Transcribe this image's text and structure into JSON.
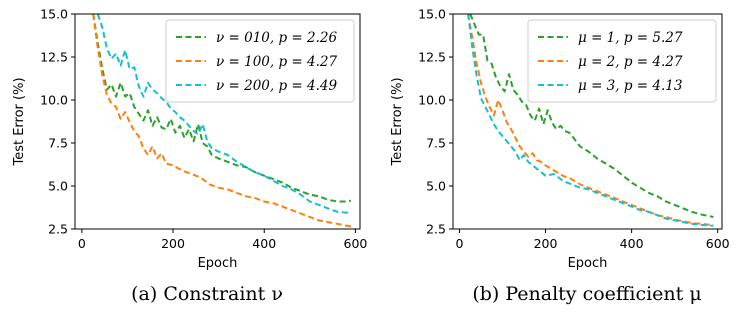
{
  "chart_data": [
    {
      "type": "line",
      "caption": "(a) Constraint ν",
      "xlabel": "Epoch",
      "ylabel": "Test Error (%)",
      "xlim": [
        -15,
        610
      ],
      "ylim": [
        2.5,
        15.0
      ],
      "xticks": [
        0,
        200,
        400,
        600
      ],
      "yticks": [
        "2.5",
        "5.0",
        "7.5",
        "10.0",
        "12.5",
        "15.0"
      ],
      "legend_position": "top-right",
      "series": [
        {
          "name": "ν = 010, p = 2.26",
          "color": "#2ca02c",
          "x": [
            25,
            35,
            45,
            55,
            65,
            75,
            85,
            95,
            105,
            115,
            125,
            135,
            145,
            155,
            165,
            175,
            185,
            195,
            205,
            215,
            225,
            235,
            245,
            255,
            265,
            275,
            285,
            300,
            320,
            340,
            360,
            380,
            400,
            420,
            440,
            460,
            480,
            500,
            520,
            540,
            560,
            580,
            590
          ],
          "y": [
            15.0,
            13.3,
            11.8,
            10.6,
            10.9,
            10.2,
            11.0,
            10.2,
            10.4,
            9.6,
            9.2,
            8.8,
            9.4,
            8.5,
            9.0,
            8.4,
            8.3,
            8.9,
            8.1,
            8.5,
            7.8,
            8.3,
            7.6,
            8.6,
            7.5,
            7.3,
            6.8,
            6.6,
            6.4,
            6.2,
            6.1,
            5.8,
            5.6,
            5.4,
            5.2,
            4.9,
            4.7,
            4.5,
            4.4,
            4.2,
            4.1,
            4.1,
            4.15
          ]
        },
        {
          "name": "ν = 100, p = 4.27",
          "color": "#ff7f0e",
          "x": [
            25,
            35,
            45,
            55,
            65,
            75,
            85,
            95,
            105,
            115,
            125,
            135,
            145,
            155,
            165,
            175,
            185,
            200,
            220,
            240,
            260,
            280,
            300,
            320,
            340,
            360,
            380,
            400,
            420,
            440,
            460,
            480,
            500,
            520,
            540,
            560,
            580,
            590
          ],
          "y": [
            15.0,
            13.0,
            11.4,
            10.3,
            9.8,
            9.6,
            8.9,
            9.3,
            8.7,
            8.2,
            7.9,
            7.2,
            6.8,
            7.3,
            6.6,
            6.9,
            6.3,
            6.2,
            5.9,
            5.7,
            5.5,
            5.1,
            4.9,
            4.8,
            4.6,
            4.4,
            4.3,
            4.1,
            4.0,
            3.8,
            3.6,
            3.4,
            3.2,
            3.0,
            2.9,
            2.8,
            2.7,
            2.65
          ]
        },
        {
          "name": "ν = 200, p = 4.49",
          "color": "#17becf",
          "x": [
            35,
            45,
            55,
            65,
            75,
            85,
            95,
            105,
            115,
            125,
            135,
            145,
            155,
            165,
            175,
            185,
            195,
            205,
            215,
            225,
            235,
            245,
            255,
            265,
            275,
            285,
            300,
            320,
            340,
            360,
            380,
            400,
            420,
            440,
            460,
            480,
            500,
            520,
            540,
            560,
            580,
            590
          ],
          "y": [
            15.0,
            14.2,
            13.0,
            12.4,
            12.7,
            12.0,
            12.9,
            11.8,
            11.9,
            10.8,
            10.2,
            11.0,
            10.6,
            10.4,
            10.1,
            9.9,
            9.5,
            9.3,
            9.0,
            8.8,
            8.5,
            8.2,
            8.0,
            8.6,
            7.6,
            7.2,
            7.0,
            6.8,
            6.4,
            6.1,
            5.8,
            5.6,
            5.3,
            5.0,
            4.8,
            4.5,
            4.1,
            3.9,
            3.7,
            3.5,
            3.45,
            3.5
          ]
        }
      ]
    },
    {
      "type": "line",
      "caption": "(b) Penalty coefficient μ",
      "xlabel": "Epoch",
      "ylabel": "Test Error (%)",
      "xlim": [
        -15,
        610
      ],
      "ylim": [
        2.5,
        15.0
      ],
      "xticks": [
        0,
        200,
        400,
        600
      ],
      "yticks": [
        "2.5",
        "5.0",
        "7.5",
        "10.0",
        "12.5",
        "15.0"
      ],
      "legend_position": "top-right",
      "series": [
        {
          "name": "μ = 1, p = 5.27",
          "color": "#2ca02c",
          "x": [
            25,
            35,
            45,
            55,
            65,
            75,
            85,
            95,
            105,
            115,
            125,
            135,
            145,
            155,
            165,
            175,
            185,
            195,
            205,
            215,
            225,
            235,
            245,
            255,
            265,
            280,
            300,
            320,
            340,
            360,
            380,
            400,
            420,
            440,
            460,
            480,
            500,
            520,
            540,
            560,
            580,
            590
          ],
          "y": [
            15.0,
            14.4,
            13.8,
            13.8,
            12.3,
            12.1,
            11.3,
            10.8,
            10.5,
            11.5,
            10.6,
            10.3,
            9.9,
            9.7,
            9.1,
            8.8,
            9.5,
            8.6,
            9.4,
            8.7,
            8.3,
            8.5,
            8.2,
            8.1,
            7.8,
            7.3,
            7.0,
            6.6,
            6.3,
            6.0,
            5.6,
            5.2,
            4.9,
            4.6,
            4.4,
            4.1,
            3.9,
            3.7,
            3.5,
            3.35,
            3.25,
            3.2
          ]
        },
        {
          "name": "μ = 2, p = 4.27",
          "color": "#ff7f0e",
          "x": [
            20,
            30,
            40,
            50,
            60,
            70,
            80,
            90,
            100,
            110,
            120,
            130,
            140,
            150,
            160,
            170,
            180,
            190,
            200,
            220,
            240,
            260,
            280,
            300,
            320,
            340,
            360,
            380,
            400,
            420,
            440,
            460,
            480,
            500,
            520,
            540,
            560,
            580,
            590
          ],
          "y": [
            15.0,
            13.6,
            12.1,
            11.0,
            10.2,
            9.6,
            9.1,
            10.0,
            9.4,
            8.7,
            8.3,
            7.8,
            7.3,
            7.0,
            6.7,
            6.9,
            6.5,
            6.4,
            6.2,
            5.9,
            5.6,
            5.4,
            5.1,
            4.9,
            4.7,
            4.5,
            4.3,
            4.1,
            3.9,
            3.7,
            3.5,
            3.3,
            3.2,
            3.05,
            2.95,
            2.85,
            2.8,
            2.75,
            2.75
          ]
        },
        {
          "name": "μ = 3, p = 4.13",
          "color": "#17becf",
          "x": [
            20,
            30,
            40,
            50,
            60,
            70,
            80,
            90,
            100,
            110,
            120,
            130,
            140,
            150,
            160,
            170,
            180,
            190,
            200,
            220,
            240,
            260,
            280,
            300,
            320,
            340,
            360,
            380,
            400,
            420,
            440,
            460,
            480,
            500,
            520,
            540,
            560,
            580,
            590
          ],
          "y": [
            15.0,
            13.0,
            11.4,
            10.1,
            9.6,
            9.1,
            8.6,
            8.2,
            7.9,
            7.6,
            7.3,
            7.0,
            6.5,
            6.8,
            6.4,
            6.2,
            6.0,
            5.8,
            5.6,
            5.7,
            5.3,
            5.1,
            4.9,
            4.8,
            4.6,
            4.4,
            4.2,
            4.0,
            3.8,
            3.6,
            3.5,
            3.3,
            3.1,
            3.0,
            2.9,
            2.8,
            2.75,
            2.7,
            2.7
          ]
        }
      ]
    }
  ]
}
